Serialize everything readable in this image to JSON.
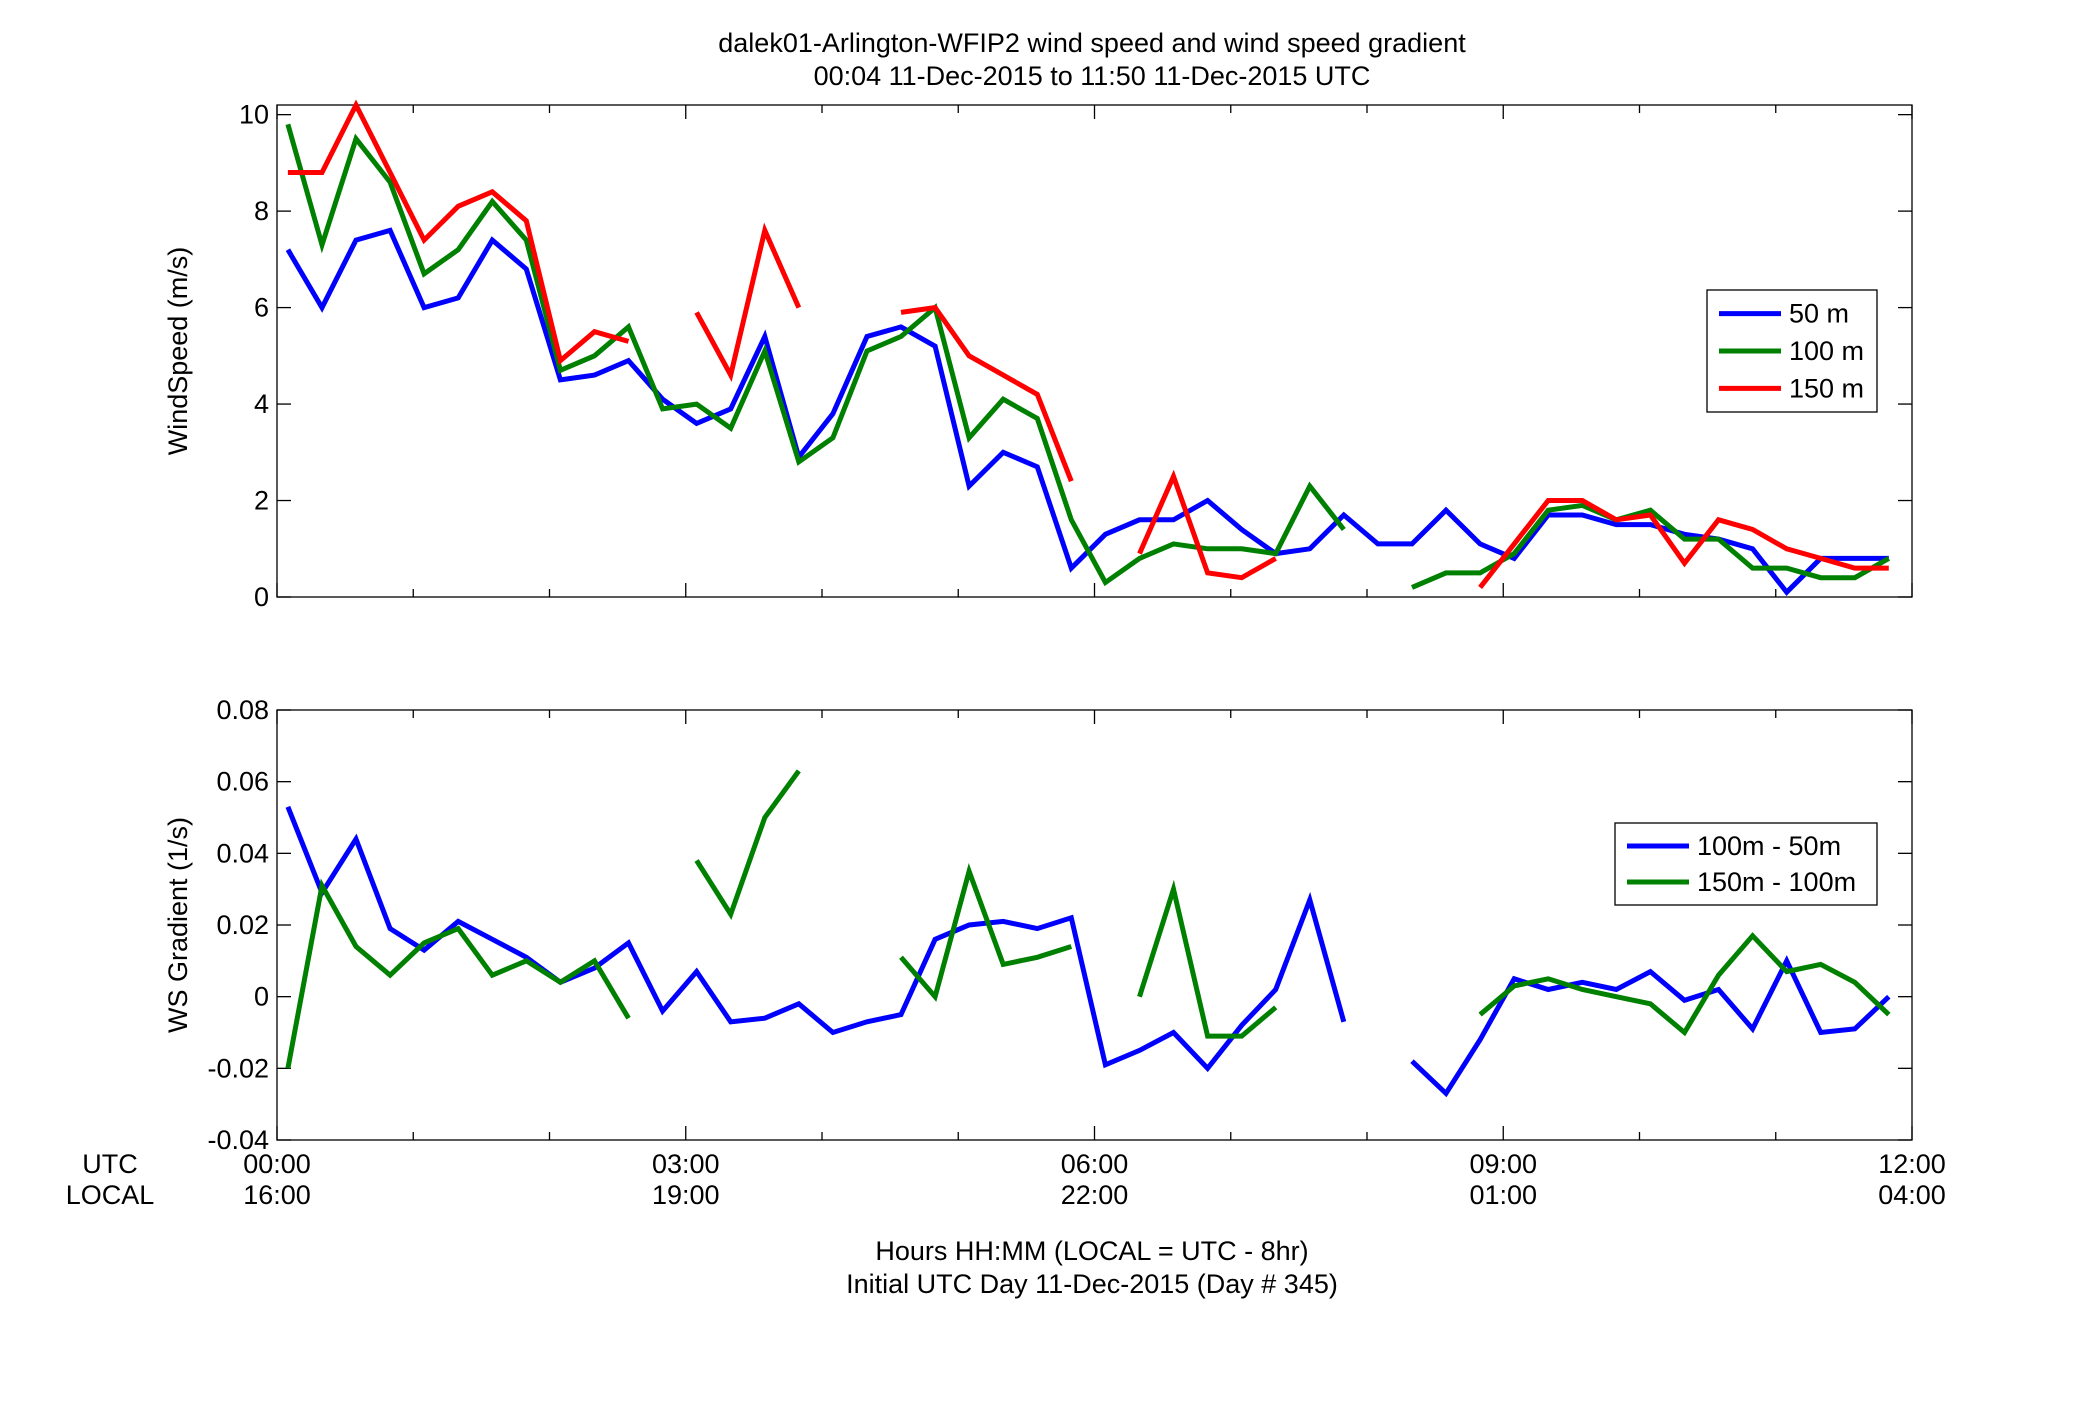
{
  "figure": {
    "title_line1": "dalek01-Arlington-WFIP2  wind speed and wind speed gradient",
    "title_line2": "00:04 11-Dec-2015 to 11:50 11-Dec-2015  UTC",
    "xlabel_line1": "Hours HH:MM  (LOCAL = UTC - 8hr)",
    "xlabel_line2": "Initial UTC Day 11-Dec-2015 (Day # 345)",
    "utc_row_label": "UTC",
    "local_row_label": "LOCAL",
    "x_ticks_utc": [
      "00:00",
      "03:00",
      "06:00",
      "09:00",
      "12:00"
    ],
    "x_ticks_local": [
      "16:00",
      "19:00",
      "22:00",
      "01:00",
      "04:00"
    ]
  },
  "chart_data": [
    {
      "type": "line",
      "ylabel": "WindSpeed (m/s)",
      "xlim": [
        0,
        12
      ],
      "ylim": [
        0,
        10.2
      ],
      "yticks": [
        0,
        2,
        4,
        6,
        8,
        10
      ],
      "ytick_labels": [
        "0",
        "2",
        "4",
        "6",
        "8",
        "10"
      ],
      "grid": false,
      "legend_position": "right",
      "x": [
        0.08,
        0.33,
        0.58,
        0.83,
        1.08,
        1.33,
        1.58,
        1.83,
        2.08,
        2.33,
        2.58,
        2.83,
        3.08,
        3.33,
        3.58,
        3.83,
        4.08,
        4.33,
        4.58,
        4.83,
        5.08,
        5.33,
        5.58,
        5.83,
        6.08,
        6.33,
        6.58,
        6.83,
        7.08,
        7.33,
        7.58,
        7.83,
        8.08,
        8.33,
        8.58,
        8.83,
        9.08,
        9.33,
        9.58,
        9.83,
        10.08,
        10.33,
        10.58,
        10.83,
        11.08,
        11.33,
        11.58,
        11.83
      ],
      "series": [
        {
          "name": "50 m",
          "color": "#0000ff",
          "values": [
            7.2,
            6.0,
            7.4,
            7.6,
            6.0,
            6.2,
            7.4,
            6.8,
            4.5,
            4.6,
            4.9,
            4.1,
            3.6,
            3.9,
            5.4,
            2.9,
            3.8,
            5.4,
            5.6,
            5.2,
            2.3,
            3.0,
            2.7,
            0.6,
            1.3,
            1.6,
            1.6,
            2.0,
            1.4,
            0.9,
            1.0,
            1.7,
            1.1,
            1.1,
            1.8,
            1.1,
            0.8,
            1.7,
            1.7,
            1.5,
            1.5,
            1.3,
            1.2,
            1.0,
            0.1,
            0.8,
            0.8,
            0.8
          ]
        },
        {
          "name": "100 m",
          "color": "#008000",
          "values": [
            9.8,
            7.3,
            9.5,
            8.6,
            6.7,
            7.2,
            8.2,
            7.4,
            4.7,
            5.0,
            5.6,
            3.9,
            4.0,
            3.5,
            5.1,
            2.8,
            3.3,
            5.1,
            5.4,
            6.0,
            3.3,
            4.1,
            3.7,
            1.6,
            0.3,
            0.8,
            1.1,
            1.0,
            1.0,
            0.9,
            2.3,
            1.4,
            null,
            0.2,
            0.5,
            0.5,
            0.9,
            1.8,
            1.9,
            1.6,
            1.8,
            1.2,
            1.2,
            0.6,
            0.6,
            0.4,
            0.4,
            0.8
          ]
        },
        {
          "name": "150 m",
          "color": "#ff0000",
          "values": [
            8.8,
            8.8,
            10.2,
            8.8,
            7.4,
            8.1,
            8.4,
            7.8,
            4.9,
            5.5,
            5.3,
            null,
            5.9,
            4.6,
            7.6,
            6.0,
            null,
            null,
            5.9,
            6.0,
            5.0,
            4.6,
            4.2,
            2.4,
            null,
            0.9,
            2.5,
            0.5,
            0.4,
            0.8,
            null,
            null,
            null,
            null,
            null,
            0.2,
            1.1,
            2.0,
            2.0,
            1.6,
            1.7,
            0.7,
            1.6,
            1.4,
            1.0,
            0.8,
            0.6,
            0.6
          ]
        }
      ]
    },
    {
      "type": "line",
      "ylabel": "WS Gradient (1/s)",
      "xlim": [
        0,
        12
      ],
      "ylim": [
        -0.04,
        0.08
      ],
      "yticks": [
        -0.04,
        -0.02,
        0,
        0.02,
        0.04,
        0.06,
        0.08
      ],
      "ytick_labels": [
        "-0.04",
        "-0.02",
        "0",
        "0.02",
        "0.04",
        "0.06",
        "0.08"
      ],
      "grid": false,
      "legend_position": "right",
      "x": [
        0.08,
        0.33,
        0.58,
        0.83,
        1.08,
        1.33,
        1.58,
        1.83,
        2.08,
        2.33,
        2.58,
        2.83,
        3.08,
        3.33,
        3.58,
        3.83,
        4.08,
        4.33,
        4.58,
        4.83,
        5.08,
        5.33,
        5.58,
        5.83,
        6.08,
        6.33,
        6.58,
        6.83,
        7.08,
        7.33,
        7.58,
        7.83,
        8.08,
        8.33,
        8.58,
        8.83,
        9.08,
        9.33,
        9.58,
        9.83,
        10.08,
        10.33,
        10.58,
        10.83,
        11.08,
        11.33,
        11.58,
        11.83
      ],
      "series": [
        {
          "name": "100m - 50m",
          "color": "#0000ff",
          "values": [
            0.053,
            0.029,
            0.044,
            0.019,
            0.013,
            0.021,
            0.016,
            0.011,
            0.004,
            0.008,
            0.015,
            -0.004,
            0.007,
            -0.007,
            -0.006,
            -0.002,
            -0.01,
            -0.007,
            -0.005,
            0.016,
            0.02,
            0.021,
            0.019,
            0.022,
            -0.019,
            -0.015,
            -0.01,
            -0.02,
            -0.008,
            0.002,
            0.027,
            -0.007,
            null,
            -0.018,
            -0.027,
            -0.012,
            0.005,
            0.002,
            0.004,
            0.002,
            0.007,
            -0.001,
            0.002,
            -0.009,
            0.01,
            -0.01,
            -0.009,
            0.0
          ]
        },
        {
          "name": "150m - 100m",
          "color": "#008000",
          "values": [
            -0.02,
            0.031,
            0.014,
            0.006,
            0.015,
            0.019,
            0.006,
            0.01,
            0.004,
            0.01,
            -0.006,
            null,
            0.038,
            0.023,
            0.05,
            0.063,
            null,
            null,
            0.011,
            0.0,
            0.035,
            0.009,
            0.011,
            0.014,
            null,
            0.0,
            0.03,
            -0.011,
            -0.011,
            -0.003,
            null,
            null,
            null,
            null,
            null,
            -0.005,
            0.003,
            0.005,
            0.002,
            0.0,
            -0.002,
            -0.01,
            0.006,
            0.017,
            0.007,
            0.009,
            0.004,
            -0.005
          ]
        }
      ]
    }
  ]
}
